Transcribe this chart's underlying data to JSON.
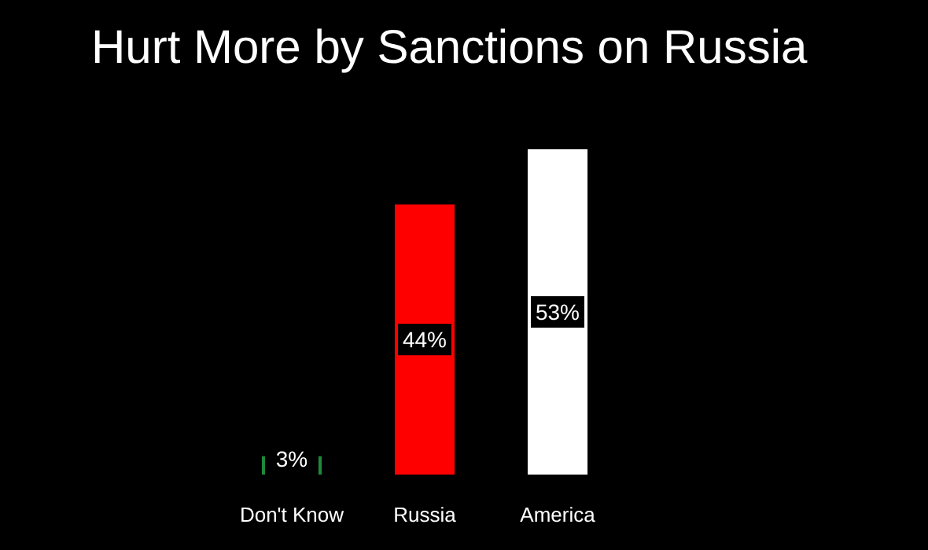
{
  "chart_data": {
    "type": "bar",
    "title": "Hurt More by Sanctions on Russia",
    "categories": [
      "Don't Know",
      "Russia",
      "America"
    ],
    "values": [
      3,
      44,
      53
    ],
    "colors": [
      "#1f8a3a",
      "#ff0000",
      "#ffffff"
    ],
    "value_labels": [
      "3%",
      "44%",
      "53%"
    ]
  }
}
